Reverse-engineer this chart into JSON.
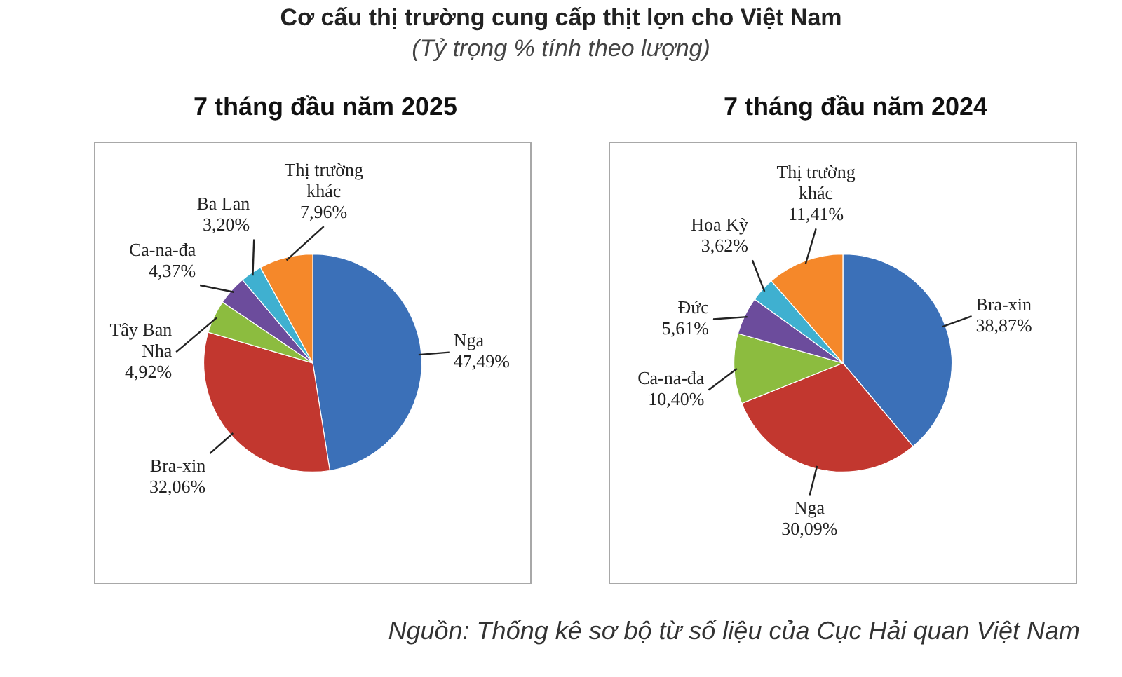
{
  "chart_data": [
    {
      "type": "other",
      "title": "Cơ cấu thị trường cung cấp thịt lợn cho Việt Nam",
      "subtitle": "(Tỷ trọng % tính theo lượng)"
    },
    {
      "type": "pie",
      "title": "7 tháng đầu năm 2025",
      "categories": [
        "Nga",
        "Bra-xin",
        "Tây Ban Nha",
        "Ca-na-đa",
        "Ba Lan",
        "Thị trường khác"
      ],
      "values": [
        47.49,
        32.06,
        4.92,
        4.37,
        3.2,
        7.96
      ],
      "value_labels": [
        "47,49%",
        "32,06%",
        "4,92%",
        "4,37%",
        "3,20%",
        "7,96%"
      ],
      "colors": [
        "#3b70b8",
        "#c2372f",
        "#8cbc3f",
        "#6c4c9c",
        "#3fb0d0",
        "#f5882a"
      ]
    },
    {
      "type": "pie",
      "title": "7 tháng đầu năm 2024",
      "categories": [
        "Bra-xin",
        "Nga",
        "Ca-na-đa",
        "Đức",
        "Hoa Kỳ",
        "Thị trường khác"
      ],
      "values": [
        38.87,
        30.09,
        10.4,
        5.61,
        3.62,
        11.41
      ],
      "value_labels": [
        "38,87%",
        "30,09%",
        "10,40%",
        "5,61%",
        "3,62%",
        "11,41%"
      ],
      "colors": [
        "#3b70b8",
        "#c2372f",
        "#8cbc3f",
        "#6c4c9c",
        "#3fb0d0",
        "#f5882a"
      ]
    },
    {
      "type": "other",
      "annotations": [
        "Nguồn: Thống kê sơ bộ từ số liệu của Cục Hải quan Việt Nam"
      ]
    }
  ]
}
